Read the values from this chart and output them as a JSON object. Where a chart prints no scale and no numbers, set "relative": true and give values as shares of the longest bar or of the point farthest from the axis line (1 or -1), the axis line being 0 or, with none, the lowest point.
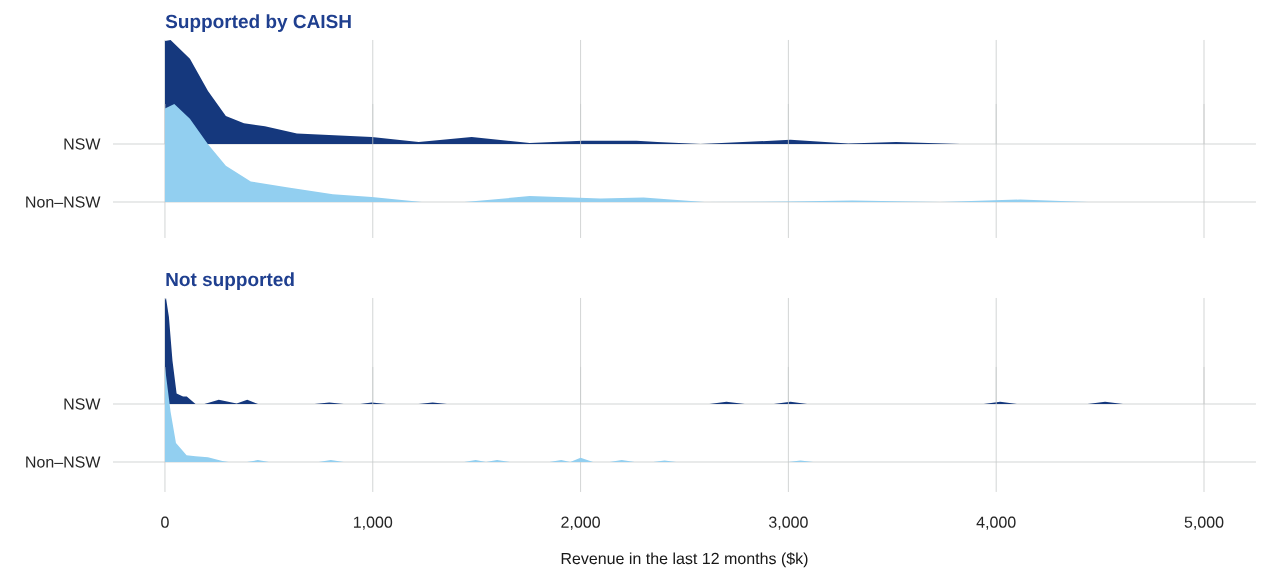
{
  "chart_data": [
    {
      "type": "area",
      "relative": true,
      "title": "Supported by CAISH",
      "ylabel": "NSW",
      "xlim": [
        -250,
        5250
      ],
      "xticks": [
        {
          "value": 0,
          "label": null
        },
        {
          "value": 1000,
          "label": null
        },
        {
          "value": 2000,
          "label": null
        },
        {
          "value": 3000,
          "label": null
        },
        {
          "value": 4000,
          "label": null
        },
        {
          "value": 5000,
          "label": null
        }
      ],
      "grid": "x",
      "tick_labels": false,
      "series": [
        {
          "color": "#15387d",
          "x": [
            0,
            27,
            120,
            207,
            293,
            380,
            481,
            635,
            995,
            1221,
            1476,
            1755,
            2010,
            2269,
            2370,
            2577,
            3010,
            3288,
            3519,
            3827,
            4600
          ],
          "values": [
            0.99,
            1.0,
            0.82,
            0.51,
            0.27,
            0.2,
            0.17,
            0.1,
            0.067,
            0.02,
            0.067,
            0.01,
            0.03,
            0.03,
            0.02,
            0,
            0.04,
            0.005,
            0.02,
            0,
            0
          ]
        }
      ]
    },
    {
      "type": "area",
      "relative": true,
      "ylabel": "Non–NSW",
      "xlim": [
        -250,
        5250
      ],
      "xticks": [
        {
          "value": 0,
          "label": null
        },
        {
          "value": 1000,
          "label": null
        },
        {
          "value": 2000,
          "label": null
        },
        {
          "value": 3000,
          "label": null
        },
        {
          "value": 4000,
          "label": null
        },
        {
          "value": 5000,
          "label": null
        }
      ],
      "grid": "x",
      "tick_labels": false,
      "series": [
        {
          "color": "#92cff0",
          "x": [
            0,
            45,
            120,
            207,
            293,
            413,
            586,
            808,
            995,
            1236,
            1442,
            1755,
            2096,
            2303,
            2596,
            3010,
            3308,
            3731,
            4115,
            4442,
            4700
          ],
          "values": [
            0.955,
            1.0,
            0.85,
            0.59,
            0.37,
            0.21,
            0.15,
            0.08,
            0.05,
            0,
            0,
            0.06,
            0.035,
            0.045,
            0,
            0.005,
            0.015,
            0,
            0.025,
            0,
            0
          ]
        }
      ]
    },
    {
      "type": "area",
      "relative": true,
      "title": "Not supported",
      "ylabel": "NSW",
      "xlim": [
        -250,
        5250
      ],
      "xticks": [
        {
          "value": 0,
          "label": null
        },
        {
          "value": 1000,
          "label": null
        },
        {
          "value": 2000,
          "label": null
        },
        {
          "value": 3000,
          "label": null
        },
        {
          "value": 4000,
          "label": null
        },
        {
          "value": 5000,
          "label": null
        }
      ],
      "grid": "x",
      "tick_labels": false,
      "series": [
        {
          "color": "#15387d",
          "x": [
            0,
            5,
            19,
            36,
            56,
            87,
            105,
            147,
            190,
            259,
            345,
            396,
            448,
            720,
            791,
            860,
            940,
            995,
            1064,
            1220,
            1288,
            1357,
            2620,
            2702,
            2790,
            2930,
            3010,
            3090,
            3940,
            4019,
            4100,
            4440,
            4524,
            4610
          ],
          "values": [
            0.98,
            1.0,
            0.82,
            0.41,
            0.1,
            0.07,
            0.07,
            0,
            0,
            0.04,
            0.005,
            0.04,
            0,
            0,
            0.015,
            0,
            0,
            0.015,
            0,
            0,
            0.015,
            0,
            0,
            0.02,
            0,
            0,
            0.02,
            0,
            0,
            0.02,
            0,
            0,
            0.02,
            0
          ]
        }
      ]
    },
    {
      "type": "area",
      "relative": true,
      "ylabel": "Non–NSW",
      "xlabel": "Revenue in the last 12 months ($k)",
      "xlim": [
        -250,
        5250
      ],
      "xticks": [
        {
          "value": 0,
          "label": "0"
        },
        {
          "value": 1000,
          "label": "1,000"
        },
        {
          "value": 2000,
          "label": "2,000"
        },
        {
          "value": 3000,
          "label": "3,000"
        },
        {
          "value": 4000,
          "label": "4,000"
        },
        {
          "value": 5000,
          "label": "5,000"
        }
      ],
      "grid": "x",
      "tick_labels": "x",
      "series": [
        {
          "color": "#92cff0",
          "x": [
            0,
            27,
            53,
            104,
            147,
            207,
            276,
            306,
            395,
            447,
            500,
            740,
            798,
            860,
            1440,
            1495,
            1545,
            1598,
            1660,
            1850,
            1907,
            1950,
            2000,
            2060,
            2140,
            2198,
            2260,
            2350,
            2404,
            2460,
            3000,
            3058,
            3120
          ],
          "values": [
            1.0,
            0.53,
            0.2,
            0.07,
            0.06,
            0.05,
            0.01,
            0,
            0,
            0.02,
            0,
            0,
            0.02,
            0,
            0,
            0.02,
            0,
            0.02,
            0,
            0,
            0.02,
            0,
            0.045,
            0,
            0,
            0.02,
            0,
            0,
            0.015,
            0,
            0,
            0.015,
            0
          ]
        }
      ]
    }
  ]
}
